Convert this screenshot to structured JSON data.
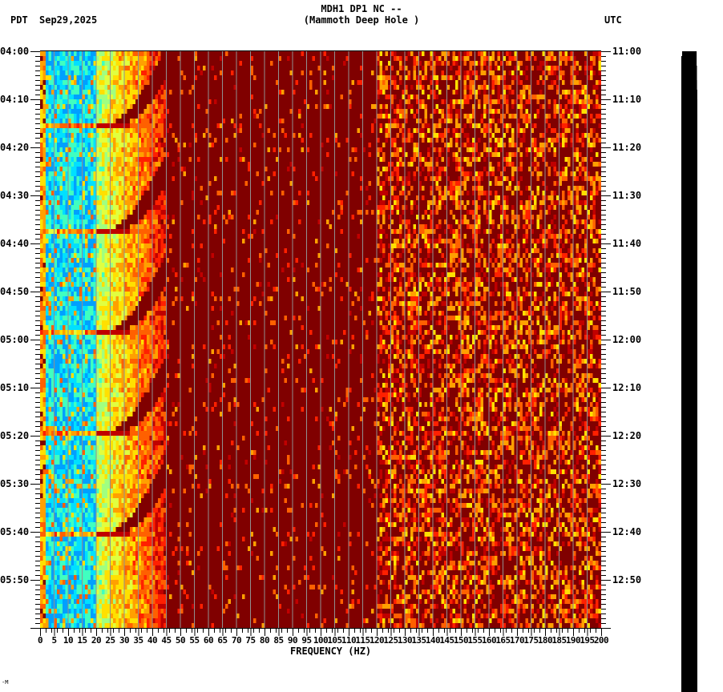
{
  "header": {
    "title_line1": "MDH1 DP1 NC --",
    "title_line2": "(Mammoth Deep Hole )",
    "left_timezone": "PDT",
    "date": "Sep29,2025",
    "right_timezone": "UTC"
  },
  "footer": {
    "corner_mark": "-M"
  },
  "colors": {
    "background": "#800000",
    "gridline": "#909090",
    "amplitude_bar": "#000000",
    "colormap": [
      "#800000",
      "#c00000",
      "#ff2000",
      "#ff6000",
      "#ffa000",
      "#ffe000",
      "#e0ff40",
      "#a0ff80",
      "#40ffc0",
      "#00e0ff",
      "#00a0ff"
    ]
  },
  "chart_data": {
    "type": "heatmap",
    "title": "MDH1 DP1 NC -- (Mammoth Deep Hole )",
    "subtitle": "Sep29,2025",
    "xlabel": "FREQUENCY (HZ)",
    "ylabel_left": "PDT",
    "ylabel_right": "UTC",
    "xlim": [
      0,
      200
    ],
    "x_ticks": [
      0,
      5,
      10,
      15,
      20,
      25,
      30,
      35,
      40,
      45,
      50,
      55,
      60,
      65,
      70,
      75,
      80,
      85,
      90,
      95,
      100,
      105,
      110,
      115,
      120,
      125,
      130,
      135,
      140,
      145,
      150,
      155,
      160,
      165,
      170,
      175,
      180,
      185,
      190,
      195,
      200
    ],
    "x_tick_labels": [
      "0",
      "5",
      "10",
      "15",
      "20",
      "25",
      "30",
      "35",
      "40",
      "45",
      "50",
      "55",
      "60",
      "65",
      "70",
      "75",
      "80",
      "85",
      "90",
      "95",
      "100",
      "105",
      "110",
      "115",
      "120",
      "125",
      "130",
      "135",
      "140",
      "145",
      "150",
      "155",
      "160",
      "165",
      "170",
      "175",
      "180",
      "185",
      "190",
      "195",
      "200"
    ],
    "y_ticks_left": [
      "04:00",
      "04:10",
      "04:20",
      "04:30",
      "04:40",
      "04:50",
      "05:00",
      "05:10",
      "05:20",
      "05:30",
      "05:40",
      "05:50"
    ],
    "y_ticks_right": [
      "11:00",
      "11:10",
      "11:20",
      "11:30",
      "11:40",
      "11:50",
      "12:00",
      "12:10",
      "12:20",
      "12:30",
      "12:40",
      "12:50"
    ],
    "time_range_pdt": [
      "04:00",
      "06:00"
    ],
    "time_range_utc": [
      "11:00",
      "13:00"
    ],
    "grid": true,
    "grid_spacing_hz": 5,
    "description": "Spectrogram: high power (cyan/blue/yellow) at 0-20 Hz, decaying through yellow/orange up to ~45 Hz; low power (dark red) 45-120 Hz; moderate mottled red/orange/yellow 120-200 Hz. Repeating curved chirp features sweeping from ~20 Hz up to ~45 Hz approximately every 21 minutes (bursts at ~04:15, 04:37, 04:58, 05:19, 05:40).",
    "burst_times_pdt": [
      "04:15",
      "04:37",
      "04:58",
      "05:19",
      "05:40"
    ],
    "colormap_order_low_to_high": [
      "dark red",
      "red",
      "orange",
      "yellow",
      "light green",
      "cyan",
      "blue"
    ]
  }
}
